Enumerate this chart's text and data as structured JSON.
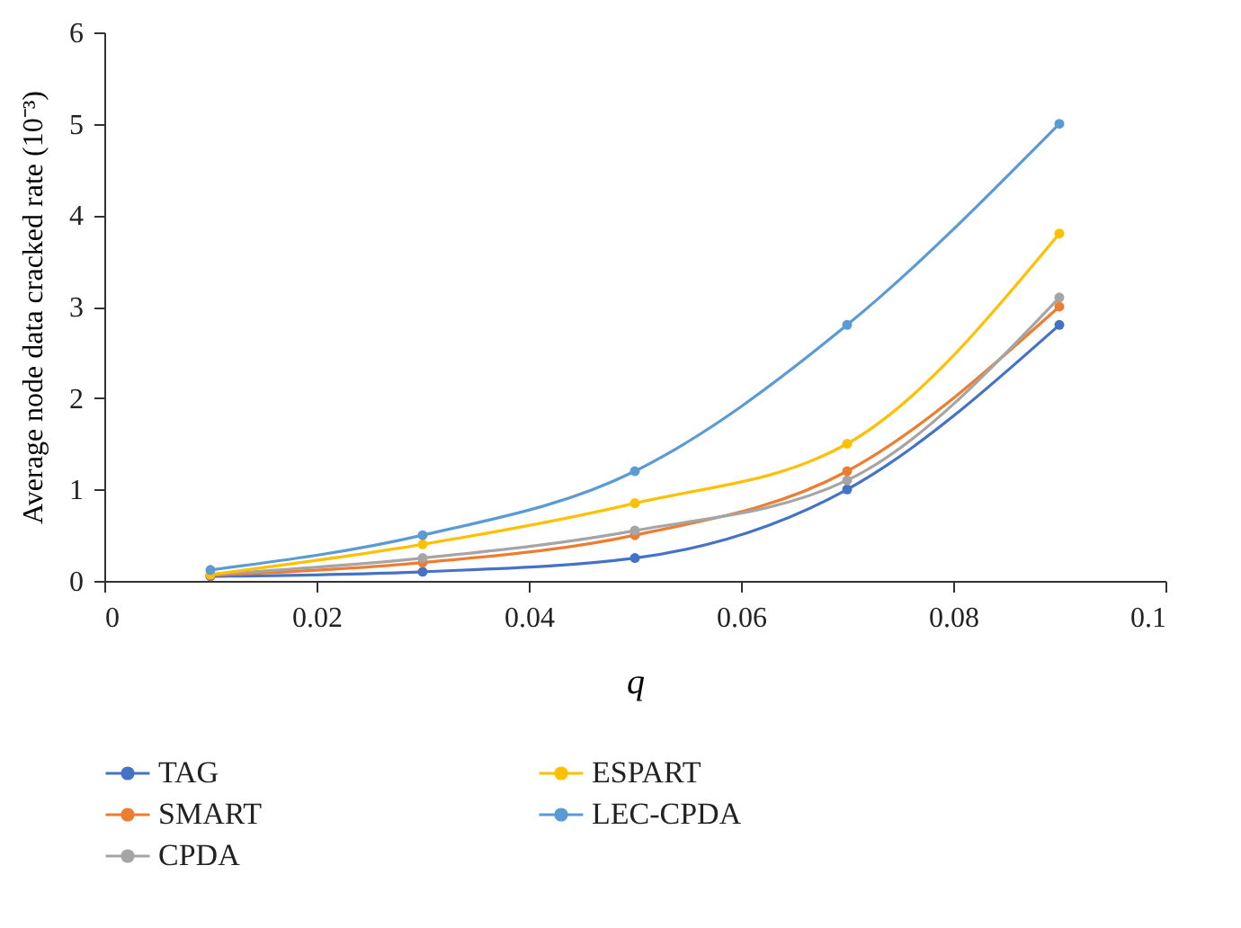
{
  "chart_data": {
    "type": "line",
    "xlabel": "q",
    "ylabel": "Average node data cracked rate (10⁻³)",
    "x": [
      0.01,
      0.03,
      0.05,
      0.07,
      0.09
    ],
    "series": [
      {
        "name": "TAG",
        "color": "#4472c4",
        "values": [
          0.05,
          0.1,
          0.25,
          1.0,
          2.8
        ]
      },
      {
        "name": "SMART",
        "color": "#ed7d31",
        "values": [
          0.06,
          0.2,
          0.5,
          1.2,
          3.0
        ]
      },
      {
        "name": "CPDA",
        "color": "#a5a5a5",
        "values": [
          0.07,
          0.25,
          0.55,
          1.1,
          3.1
        ]
      },
      {
        "name": "ESPART",
        "color": "#ffc000",
        "values": [
          0.07,
          0.4,
          0.85,
          1.5,
          3.8
        ]
      },
      {
        "name": "LEC-CPDA",
        "color": "#5b9bd5",
        "values": [
          0.12,
          0.5,
          1.2,
          2.8,
          5.0
        ]
      }
    ],
    "xlim": [
      0,
      0.1
    ],
    "xticks": [
      0,
      0.02,
      0.04,
      0.06,
      0.08,
      0.1
    ],
    "ylim": [
      0,
      6
    ],
    "yticks": [
      0,
      1,
      2,
      3,
      4,
      5,
      6
    ],
    "grid": false,
    "legend": "bottom left",
    "marker": "circle",
    "line_style": "solid"
  }
}
